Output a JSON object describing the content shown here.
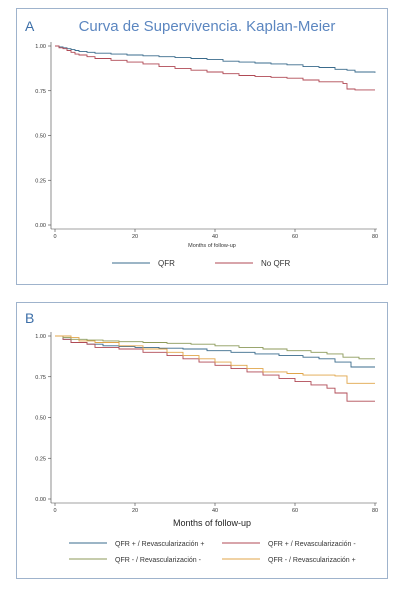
{
  "chart_data": [
    {
      "type": "line",
      "panel_letter": "A",
      "title": "Curva de Supervivencia. Kaplan-Meier",
      "xlabel": "Months of follow-up",
      "ylabel": "",
      "xlim": [
        0,
        80
      ],
      "ylim": [
        0,
        1
      ],
      "x_ticks": [
        0,
        20,
        40,
        60,
        80
      ],
      "y_ticks": [
        0.0,
        0.25,
        0.5,
        0.75,
        1.0
      ],
      "legend_position": "bottom",
      "series": [
        {
          "name": "QFR",
          "color": "#3a6b8c",
          "points": [
            [
              0,
              1.0
            ],
            [
              1,
              0.995
            ],
            [
              2,
              0.99
            ],
            [
              3,
              0.985
            ],
            [
              4,
              0.98
            ],
            [
              5,
              0.975
            ],
            [
              6,
              0.97
            ],
            [
              8,
              0.965
            ],
            [
              10,
              0.96
            ],
            [
              14,
              0.955
            ],
            [
              18,
              0.95
            ],
            [
              22,
              0.945
            ],
            [
              26,
              0.94
            ],
            [
              30,
              0.935
            ],
            [
              34,
              0.93
            ],
            [
              38,
              0.925
            ],
            [
              42,
              0.915
            ],
            [
              46,
              0.91
            ],
            [
              50,
              0.905
            ],
            [
              54,
              0.9
            ],
            [
              58,
              0.895
            ],
            [
              62,
              0.885
            ],
            [
              66,
              0.88
            ],
            [
              70,
              0.87
            ],
            [
              73,
              0.865
            ],
            [
              75,
              0.855
            ],
            [
              80,
              0.85
            ]
          ]
        },
        {
          "name": "No QFR",
          "color": "#b04a55",
          "points": [
            [
              0,
              1.0
            ],
            [
              1,
              0.99
            ],
            [
              2,
              0.985
            ],
            [
              3,
              0.975
            ],
            [
              4,
              0.965
            ],
            [
              5,
              0.955
            ],
            [
              6,
              0.95
            ],
            [
              8,
              0.94
            ],
            [
              10,
              0.93
            ],
            [
              14,
              0.92
            ],
            [
              18,
              0.91
            ],
            [
              22,
              0.9
            ],
            [
              26,
              0.885
            ],
            [
              30,
              0.875
            ],
            [
              34,
              0.865
            ],
            [
              38,
              0.855
            ],
            [
              42,
              0.845
            ],
            [
              46,
              0.835
            ],
            [
              50,
              0.83
            ],
            [
              54,
              0.825
            ],
            [
              58,
              0.82
            ],
            [
              62,
              0.81
            ],
            [
              66,
              0.8
            ],
            [
              70,
              0.8
            ],
            [
              72,
              0.79
            ],
            [
              73,
              0.76
            ],
            [
              75,
              0.755
            ],
            [
              80,
              0.755
            ]
          ]
        }
      ]
    },
    {
      "type": "line",
      "panel_letter": "B",
      "title": "",
      "xlabel": "Months of follow-up",
      "ylabel": "",
      "xlim": [
        0,
        80
      ],
      "ylim": [
        0,
        1
      ],
      "x_ticks": [
        0,
        20,
        40,
        60,
        80
      ],
      "y_ticks": [
        0.0,
        0.25,
        0.5,
        0.75,
        1.0
      ],
      "legend_position": "bottom",
      "series": [
        {
          "name": "QFR + / Revascularización +",
          "color": "#3a6b8c",
          "points": [
            [
              0,
              1.0
            ],
            [
              2,
              0.98
            ],
            [
              4,
              0.96
            ],
            [
              8,
              0.95
            ],
            [
              12,
              0.94
            ],
            [
              16,
              0.935
            ],
            [
              20,
              0.93
            ],
            [
              26,
              0.925
            ],
            [
              32,
              0.92
            ],
            [
              38,
              0.91
            ],
            [
              44,
              0.9
            ],
            [
              50,
              0.89
            ],
            [
              56,
              0.88
            ],
            [
              62,
              0.87
            ],
            [
              66,
              0.86
            ],
            [
              70,
              0.84
            ],
            [
              74,
              0.81
            ],
            [
              80,
              0.81
            ]
          ]
        },
        {
          "name": "QFR + / Revascularización -",
          "color": "#b04a55",
          "points": [
            [
              0,
              1.0
            ],
            [
              2,
              0.98
            ],
            [
              4,
              0.96
            ],
            [
              8,
              0.95
            ],
            [
              10,
              0.93
            ],
            [
              16,
              0.92
            ],
            [
              22,
              0.9
            ],
            [
              28,
              0.88
            ],
            [
              32,
              0.86
            ],
            [
              36,
              0.84
            ],
            [
              40,
              0.82
            ],
            [
              44,
              0.8
            ],
            [
              48,
              0.78
            ],
            [
              52,
              0.76
            ],
            [
              56,
              0.74
            ],
            [
              60,
              0.72
            ],
            [
              64,
              0.7
            ],
            [
              68,
              0.68
            ],
            [
              70,
              0.65
            ],
            [
              73,
              0.6
            ],
            [
              80,
              0.6
            ]
          ]
        },
        {
          "name": "QFR - / Revascularización -",
          "color": "#8c9a5a",
          "points": [
            [
              0,
              1.0
            ],
            [
              2,
              0.99
            ],
            [
              4,
              0.98
            ],
            [
              8,
              0.975
            ],
            [
              12,
              0.97
            ],
            [
              16,
              0.965
            ],
            [
              22,
              0.96
            ],
            [
              28,
              0.955
            ],
            [
              34,
              0.95
            ],
            [
              40,
              0.94
            ],
            [
              46,
              0.93
            ],
            [
              52,
              0.92
            ],
            [
              58,
              0.91
            ],
            [
              64,
              0.9
            ],
            [
              68,
              0.89
            ],
            [
              72,
              0.87
            ],
            [
              76,
              0.86
            ],
            [
              80,
              0.86
            ]
          ]
        },
        {
          "name": "QFR - / Revascularización +",
          "color": "#e0a54a",
          "points": [
            [
              0,
              1.0
            ],
            [
              2,
              1.0
            ],
            [
              4,
              0.99
            ],
            [
              6,
              0.97
            ],
            [
              10,
              0.96
            ],
            [
              16,
              0.94
            ],
            [
              22,
              0.92
            ],
            [
              28,
              0.9
            ],
            [
              32,
              0.88
            ],
            [
              36,
              0.86
            ],
            [
              40,
              0.84
            ],
            [
              44,
              0.82
            ],
            [
              48,
              0.8
            ],
            [
              52,
              0.78
            ],
            [
              58,
              0.77
            ],
            [
              62,
              0.76
            ],
            [
              66,
              0.76
            ],
            [
              70,
              0.755
            ],
            [
              73,
              0.71
            ],
            [
              80,
              0.71
            ]
          ]
        }
      ]
    }
  ]
}
